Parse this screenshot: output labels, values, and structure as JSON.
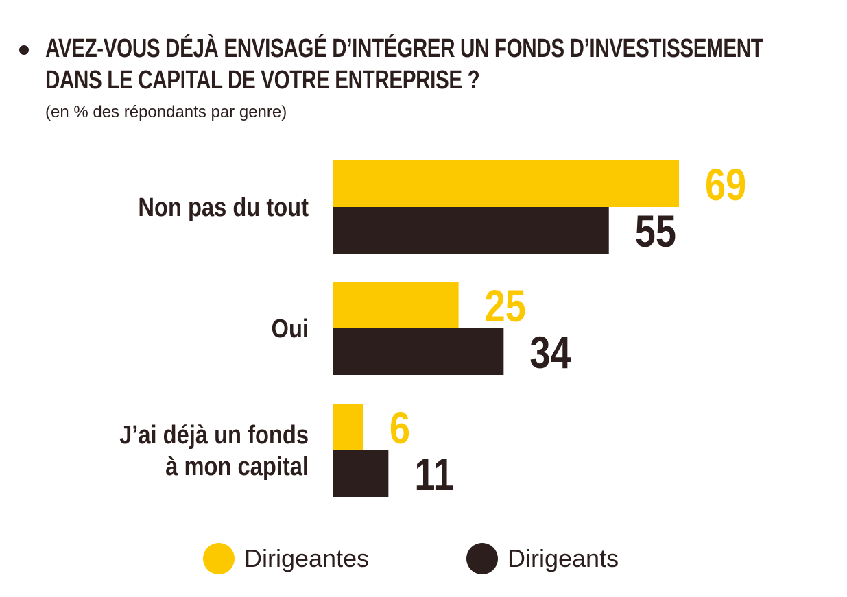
{
  "header": {
    "title_line1": "AVEZ-VOUS DÉJÀ ENVISAGÉ D’INTÉGRER UN FONDS D’INVESTISSEMENT",
    "title_line2": "DANS LE CAPITAL DE VOTRE ENTREPRISE ?",
    "subtitle": "(en % des répondants par genre)"
  },
  "colors": {
    "dirigeantes": "#fcc800",
    "dirigeants": "#2d1e1e",
    "text": "#2d1e1e"
  },
  "chart_data": {
    "type": "bar",
    "orientation": "horizontal",
    "title": "AVEZ-VOUS DÉJÀ ENVISAGÉ D’INTÉGRER UN FONDS D’INVESTISSEMENT DANS LE CAPITAL DE VOTRE ENTREPRISE ?",
    "subtitle": "(en % des répondants par genre)",
    "categories": [
      [
        "Non pas du tout"
      ],
      [
        "Oui"
      ],
      [
        "J’ai déjà un fonds",
        "à mon capital"
      ]
    ],
    "series": [
      {
        "name": "Dirigeantes",
        "values": [
          69,
          25,
          6
        ]
      },
      {
        "name": "Dirigeants",
        "values": [
          55,
          34,
          11
        ]
      }
    ],
    "xlim": [
      0,
      100
    ],
    "grid": false,
    "legend": "bottom-center",
    "data_labels": true
  }
}
